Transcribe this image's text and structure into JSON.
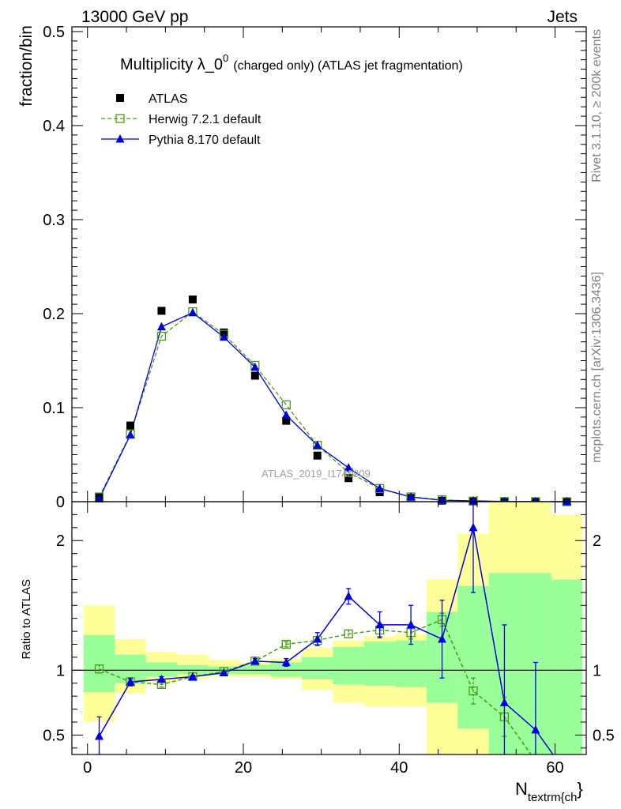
{
  "header": {
    "left": "13000 GeV pp",
    "right": "Jets"
  },
  "side_labels": {
    "top": "Rivet 3.1.10, ≥ 200k events",
    "bottom": "mcplots.cern.ch [arXiv:1306.3436]"
  },
  "watermark": "ATLAS_2019_I1740909",
  "chart_data": [
    {
      "type": "scatter",
      "panel": "main",
      "title_main": "Multiplicity λ_0",
      "title_sup": "0",
      "title_rest": "(charged only) (ATLAS jet fragmentation)",
      "ylabel": "fraction/bin",
      "xlim": [
        -2,
        64
      ],
      "ylim": [
        0,
        0.505
      ],
      "yticks": [
        0,
        0.1,
        0.2,
        0.3,
        0.4,
        0.5
      ],
      "ytick_labels": [
        "0",
        "0.1",
        "0.2",
        "0.3",
        "0.4",
        "0.5"
      ],
      "legend": {
        "position": "top-left"
      },
      "series": [
        {
          "name": "ATLAS",
          "style": "data",
          "color": "#000000",
          "x": [
            1.5,
            5.5,
            9.5,
            13.5,
            17.5,
            21.5,
            25.5,
            29.5,
            33.5,
            37.5,
            41.5,
            45.5,
            49.5,
            53.5,
            57.5,
            61.5
          ],
          "y": [
            0.005,
            0.081,
            0.203,
            0.215,
            0.18,
            0.134,
            0.086,
            0.049,
            0.025,
            0.01,
            0.004,
            0.001,
            0.0005,
            0.0002,
            0.0001,
            5e-05
          ]
        },
        {
          "name": "Herwig 7.2.1 default",
          "style": "herwig",
          "color": "#4a9a1a",
          "x": [
            1.5,
            5.5,
            9.5,
            13.5,
            17.5,
            21.5,
            25.5,
            29.5,
            33.5,
            37.5,
            41.5,
            45.5,
            49.5,
            53.5,
            57.5,
            61.5
          ],
          "y": [
            0.005,
            0.072,
            0.176,
            0.202,
            0.178,
            0.145,
            0.103,
            0.06,
            0.031,
            0.014,
            0.005,
            0.002,
            0.0006,
            0.0001,
            3e-05,
            0.0
          ]
        },
        {
          "name": "Pythia 8.170 default",
          "style": "pythia",
          "color": "#0000dd",
          "x": [
            1.5,
            5.5,
            9.5,
            13.5,
            17.5,
            21.5,
            25.5,
            29.5,
            33.5,
            37.5,
            41.5,
            45.5,
            49.5,
            53.5,
            57.5,
            61.5
          ],
          "y": [
            0.003,
            0.071,
            0.186,
            0.201,
            0.175,
            0.143,
            0.092,
            0.06,
            0.036,
            0.014,
            0.005,
            0.0015,
            0.0009,
            0.0002,
            5e-05,
            2e-05
          ]
        }
      ]
    },
    {
      "type": "line",
      "panel": "ratio",
      "ylabel": "Ratio to ATLAS",
      "xlabel_main": "N",
      "xlabel_sub": "textrm{ch",
      "xlabel_tail": "}",
      "xlim": [
        -2,
        64
      ],
      "ylim": [
        0.35,
        2.3
      ],
      "yticks": [
        0.5,
        1,
        2
      ],
      "ytick_labels": [
        "0.5",
        "1",
        "2"
      ],
      "xticks": [
        0,
        20,
        40,
        60
      ],
      "xtick_labels": [
        "0",
        "20",
        "40",
        "60"
      ],
      "bins": [
        [
          -0.5,
          3.5
        ],
        [
          3.5,
          7.5
        ],
        [
          7.5,
          11.5
        ],
        [
          11.5,
          15.5
        ],
        [
          15.5,
          19.5
        ],
        [
          19.5,
          23.5
        ],
        [
          23.5,
          27.5
        ],
        [
          27.5,
          31.5
        ],
        [
          31.5,
          35.5
        ],
        [
          35.5,
          39.5
        ],
        [
          39.5,
          43.5
        ],
        [
          43.5,
          47.5
        ],
        [
          47.5,
          51.5
        ],
        [
          51.5,
          55.5
        ],
        [
          55.5,
          59.5
        ],
        [
          59.5,
          63.5
        ]
      ],
      "band_total": [
        [
          0.6,
          1.5
        ],
        [
          0.82,
          1.24
        ],
        [
          0.9,
          1.14
        ],
        [
          0.93,
          1.12
        ],
        [
          0.95,
          1.08
        ],
        [
          0.95,
          1.06
        ],
        [
          0.93,
          1.09
        ],
        [
          0.85,
          1.17
        ],
        [
          0.75,
          1.23
        ],
        [
          0.72,
          1.26
        ],
        [
          0.72,
          1.28
        ],
        [
          0.3,
          1.7
        ],
        [
          0.3,
          2.05
        ],
        [
          0.3,
          2.3
        ],
        [
          0.3,
          2.3
        ],
        [
          0.3,
          2.2
        ]
      ],
      "band_stat": [
        [
          0.83,
          1.27
        ],
        [
          0.9,
          1.12
        ],
        [
          0.95,
          1.06
        ],
        [
          0.97,
          1.04
        ],
        [
          0.97,
          1.03
        ],
        [
          0.97,
          1.04
        ],
        [
          0.95,
          1.06
        ],
        [
          0.93,
          1.1
        ],
        [
          0.89,
          1.18
        ],
        [
          0.88,
          1.22
        ],
        [
          0.87,
          1.23
        ],
        [
          0.75,
          1.45
        ],
        [
          0.55,
          1.65
        ],
        [
          0.35,
          1.75
        ],
        [
          0.35,
          1.75
        ],
        [
          0.35,
          1.7
        ]
      ],
      "reference": 1,
      "series": [
        {
          "name": "Herwig 7.2.1 default",
          "style": "herwig",
          "color": "#4a9a1a",
          "x": [
            1.5,
            5.5,
            9.5,
            13.5,
            17.5,
            21.5,
            25.5,
            29.5,
            33.5,
            37.5,
            41.5,
            45.5,
            49.5,
            53.5,
            57.5
          ],
          "y": [
            1.01,
            0.91,
            0.89,
            0.95,
            0.99,
            1.07,
            1.2,
            1.23,
            1.28,
            1.31,
            1.29,
            1.39,
            0.84,
            0.64,
            0.3
          ],
          "err": [
            0.03,
            0.02,
            0.02,
            0.01,
            0.01,
            0.02,
            0.02,
            0.03,
            0.03,
            0.05,
            0.05,
            0.05,
            0.1,
            0.15,
            0.0
          ]
        },
        {
          "name": "Pythia 8.170 default",
          "style": "pythia",
          "color": "#0000dd",
          "x": [
            1.5,
            5.5,
            9.5,
            13.5,
            17.5,
            21.5,
            25.5,
            29.5,
            33.5,
            37.5,
            41.5,
            45.5,
            49.5,
            53.5,
            57.5,
            61.5
          ],
          "y": [
            0.49,
            0.91,
            0.93,
            0.95,
            0.98,
            1.07,
            1.06,
            1.24,
            1.57,
            1.35,
            1.35,
            1.24,
            2.1,
            0.75,
            0.54,
            0.2
          ],
          "err": [
            0.15,
            0.03,
            0.02,
            0.01,
            0.01,
            0.02,
            0.03,
            0.05,
            0.06,
            0.1,
            0.15,
            0.3,
            0.5,
            0.6,
            0.52,
            0.0
          ]
        }
      ]
    }
  ]
}
